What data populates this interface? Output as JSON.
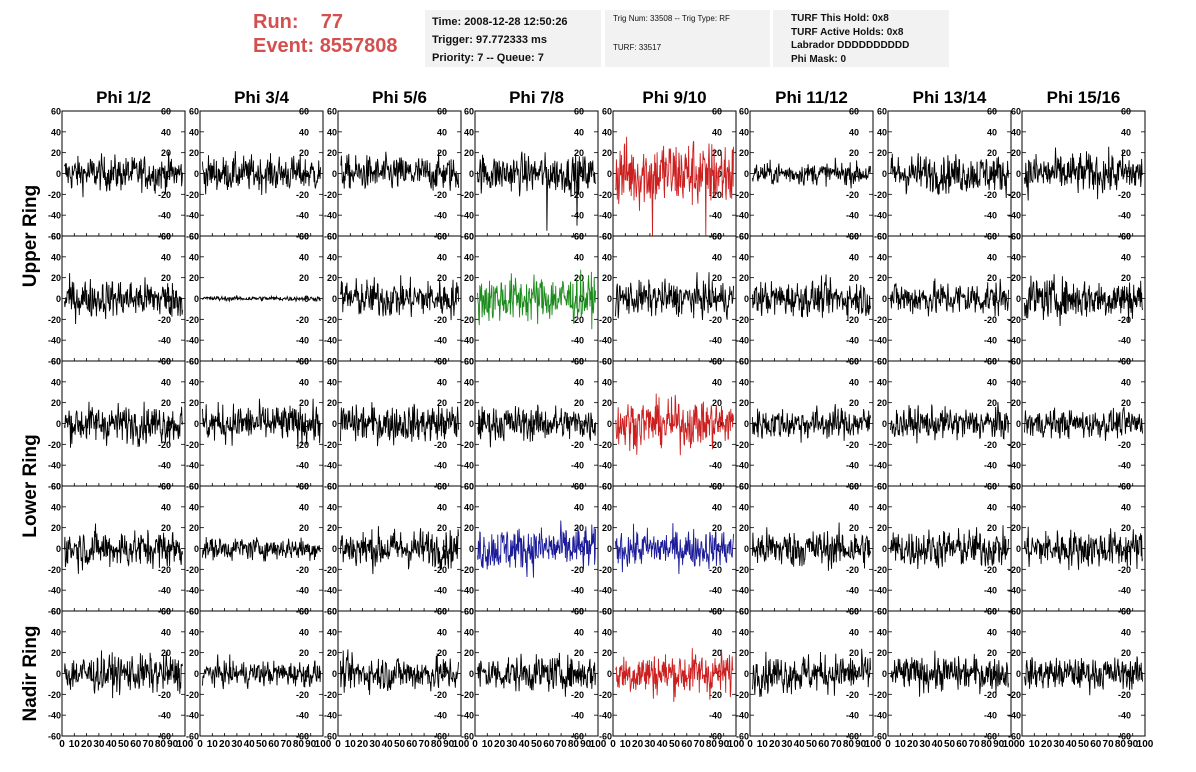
{
  "header": {
    "run_label": "Run:",
    "run_value": "77",
    "event_label": "Event:",
    "event_value": "8557808",
    "time_line": "Time: 2008-12-28 12:50:26",
    "trigger_line": "Trigger: 97.772333 ms",
    "priority_line": "Priority: 7 -- Queue: 7",
    "trig_num_line": "Trig Num: 33508 -- Trig Type: RF",
    "turf_line": "TURF: 33517",
    "turf_hold_line": "TURF This Hold: 0x8",
    "turf_active_line": "TURF Active Holds: 0x8",
    "labrador_line": "Labrador DDDDDDDDDD",
    "phi_mask_line": "Phi Mask: 0"
  },
  "chart_data": {
    "type": "line",
    "description": "Grid of 40 ADC waveform panels (5 rows x 8 phi sectors)",
    "columns": [
      "Phi 1/2",
      "Phi 3/4",
      "Phi 5/6",
      "Phi 7/8",
      "Phi 9/10",
      "Phi 11/12",
      "Phi 13/14",
      "Phi 15/16"
    ],
    "ring_labels": [
      {
        "label": "Upper Ring",
        "rows": [
          0,
          1
        ]
      },
      {
        "label": "Lower Ring",
        "rows": [
          2,
          3
        ]
      },
      {
        "label": "Nadir Ring",
        "rows": [
          4
        ]
      }
    ],
    "xlim": [
      0,
      100
    ],
    "ylim": [
      -60,
      60
    ],
    "y_ticks": [
      -60,
      -40,
      -20,
      0,
      20,
      40,
      60
    ],
    "x_ticks": [
      0,
      10,
      20,
      30,
      40,
      50,
      60,
      70,
      80,
      90,
      100
    ],
    "samples": 256,
    "colors": {
      "normal": "#000000",
      "red": "#cc2020",
      "green": "#1a8a1a",
      "blue": "#1c1c9a"
    },
    "panels": [
      [
        {
          "amp": 11,
          "color": "normal"
        },
        {
          "amp": 11,
          "color": "normal"
        },
        {
          "amp": 11,
          "color": "normal"
        },
        {
          "amp": 12,
          "color": "normal",
          "spikes": [
            [
              150,
              -55
            ],
            [
              215,
              -50
            ]
          ]
        },
        {
          "amp": 22,
          "color": "red",
          "spikes": [
            [
              80,
              -60
            ],
            [
              195,
              -60
            ]
          ]
        },
        {
          "amp": 7,
          "color": "normal"
        },
        {
          "amp": 12,
          "color": "normal"
        },
        {
          "amp": 13,
          "color": "normal"
        }
      ],
      [
        {
          "amp": 12,
          "color": "normal"
        },
        {
          "amp": 1.5,
          "color": "normal"
        },
        {
          "amp": 12,
          "color": "normal"
        },
        {
          "amp": 15,
          "color": "green"
        },
        {
          "amp": 11,
          "color": "normal"
        },
        {
          "amp": 11,
          "color": "normal"
        },
        {
          "amp": 11,
          "color": "normal"
        },
        {
          "amp": 13,
          "color": "normal"
        }
      ],
      [
        {
          "amp": 12,
          "color": "normal"
        },
        {
          "amp": 12,
          "color": "normal"
        },
        {
          "amp": 12,
          "color": "normal"
        },
        {
          "amp": 11,
          "color": "normal"
        },
        {
          "amp": 15,
          "color": "red"
        },
        {
          "amp": 10,
          "color": "normal"
        },
        {
          "amp": 10,
          "color": "normal"
        },
        {
          "amp": 9,
          "color": "normal"
        }
      ],
      [
        {
          "amp": 12,
          "color": "normal"
        },
        {
          "amp": 7,
          "color": "normal"
        },
        {
          "amp": 12,
          "color": "normal"
        },
        {
          "amp": 14,
          "color": "blue"
        },
        {
          "amp": 12,
          "color": "blue"
        },
        {
          "amp": 12,
          "color": "normal"
        },
        {
          "amp": 12,
          "color": "normal"
        },
        {
          "amp": 12,
          "color": "normal"
        }
      ],
      [
        {
          "amp": 12,
          "color": "normal"
        },
        {
          "amp": 8,
          "color": "normal"
        },
        {
          "amp": 11,
          "color": "normal"
        },
        {
          "amp": 11,
          "color": "normal"
        },
        {
          "amp": 14,
          "color": "red"
        },
        {
          "amp": 12,
          "color": "normal"
        },
        {
          "amp": 11,
          "color": "normal"
        },
        {
          "amp": 10,
          "color": "normal"
        }
      ]
    ]
  }
}
